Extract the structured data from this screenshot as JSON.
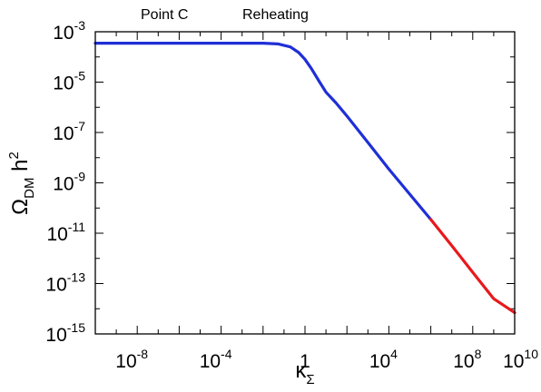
{
  "header": {
    "left_label": "Point C",
    "right_label": "Reheating"
  },
  "colors": {
    "series_main": "#1f2fd6",
    "series_tail": "#e8191c",
    "axis": "#000000",
    "background": "#ffffff"
  },
  "chart_data": {
    "type": "line",
    "title": "",
    "xlabel": "κ_Σ",
    "ylabel": "Ω_DM h^2",
    "x_scale": "log",
    "y_scale": "log",
    "xlim": [
      1e-10,
      10000000000.0
    ],
    "ylim": [
      1e-15,
      0.001
    ],
    "grid": false,
    "x_ticks": [
      {
        "value": 1e-08,
        "base": "10",
        "exp": "-8"
      },
      {
        "value": 0.0001,
        "base": "10",
        "exp": "-4"
      },
      {
        "value": 1,
        "base": "1",
        "exp": ""
      },
      {
        "value": 10000.0,
        "base": "10",
        "exp": "4"
      },
      {
        "value": 100000000.0,
        "base": "10",
        "exp": "8"
      },
      {
        "value": 10000000000.0,
        "base": "10",
        "exp": "10"
      }
    ],
    "y_ticks": [
      {
        "value": 0.001,
        "base": "10",
        "exp": "-3"
      },
      {
        "value": 1e-05,
        "base": "10",
        "exp": "-5"
      },
      {
        "value": 1e-07,
        "base": "10",
        "exp": "-7"
      },
      {
        "value": 1e-09,
        "base": "10",
        "exp": "-9"
      },
      {
        "value": 1e-11,
        "base": "10",
        "exp": "-11"
      },
      {
        "value": 1e-13,
        "base": "10",
        "exp": "-13"
      },
      {
        "value": 1e-15,
        "base": "10",
        "exp": "-15"
      }
    ],
    "series": [
      {
        "color": "#1f2fd6",
        "x": [
          1e-10,
          1e-06,
          0.01,
          0.05,
          0.2,
          0.5,
          1,
          2,
          5,
          10,
          30,
          100,
          1000,
          10000,
          100000,
          1000000
        ],
        "y": [
          0.00035,
          0.00035,
          0.00035,
          0.00033,
          0.00025,
          0.00015,
          8e-05,
          3.5e-05,
          1e-05,
          4e-06,
          1.5e-06,
          4.5e-07,
          4e-08,
          3.5e-09,
          3.5e-10,
          3.5e-11
        ]
      },
      {
        "color": "#e8191c",
        "x": [
          1000000,
          10000000,
          100000000,
          1000000000,
          10000000000
        ],
        "y": [
          3.5e-11,
          3.2e-12,
          2.8e-13,
          2.5e-14,
          7e-15
        ]
      }
    ]
  }
}
